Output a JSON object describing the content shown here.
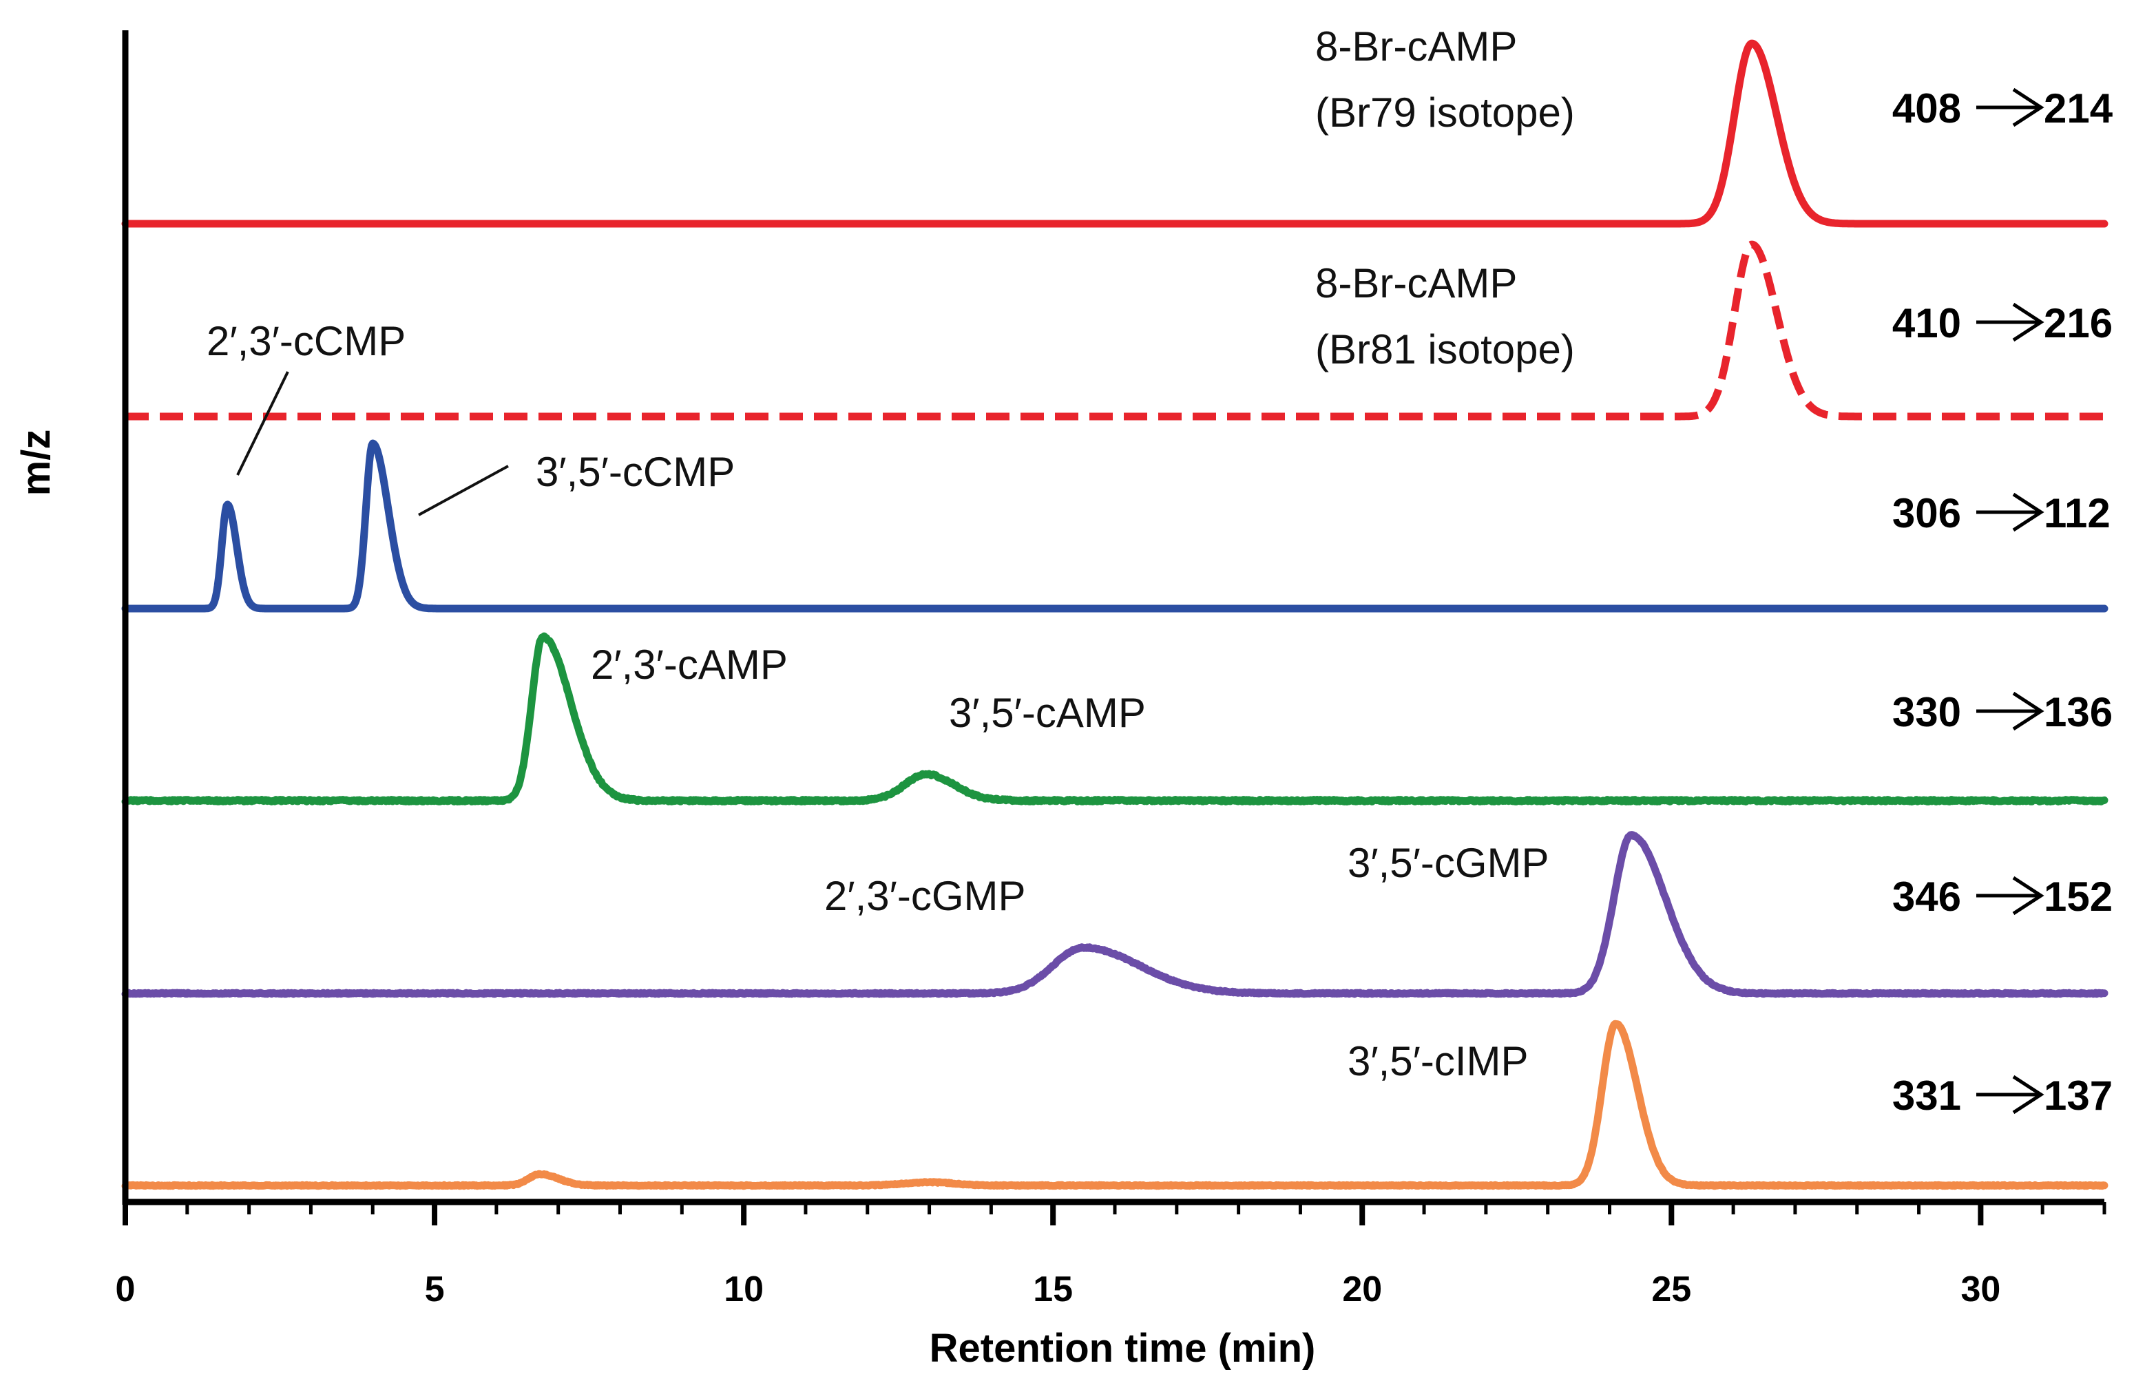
{
  "chart_data": {
    "type": "line",
    "title": "",
    "xlabel": "Retention time (min)",
    "ylabel": "m/z",
    "xlim": [
      0,
      32
    ],
    "xticks": [
      0,
      5,
      10,
      15,
      20,
      25,
      30
    ],
    "grid": false,
    "series": [
      {
        "name": "8-Br-cAMP (Br79 isotope)",
        "transition": {
          "precursor": "408",
          "product": "214"
        },
        "color": "#e8242c",
        "dashed": false,
        "noise": 0.0,
        "peaks": [
          {
            "rt": 26.3,
            "height": 1.0,
            "width": 0.28,
            "tail": 0.4
          }
        ],
        "labels": [
          {
            "lines": [
              "8-Br-cAMP",
              "(Br79 isotope)"
            ]
          }
        ]
      },
      {
        "name": "8-Br-cAMP (Br81 isotope)",
        "transition": {
          "precursor": "410",
          "product": "216"
        },
        "color": "#e8242c",
        "dashed": true,
        "noise": 0.0,
        "peaks": [
          {
            "rt": 26.3,
            "height": 1.0,
            "width": 0.28,
            "tail": 0.4
          }
        ],
        "labels": [
          {
            "lines": [
              "8-Br-cAMP",
              "(Br81 isotope)"
            ]
          }
        ]
      },
      {
        "name": "cCMP",
        "transition": {
          "precursor": "306",
          "product": "112"
        },
        "color": "#2b4ea2",
        "dashed": false,
        "noise": 0.0,
        "peaks": [
          {
            "rt": 1.65,
            "height": 0.63,
            "width": 0.09,
            "tail": 0.15
          },
          {
            "rt": 4.0,
            "height": 1.0,
            "width": 0.11,
            "tail": 0.25
          }
        ],
        "labels": [
          {
            "lines": [
              "2′,3′-cCMP"
            ]
          },
          {
            "lines": [
              "3′,5′-cCMP"
            ]
          }
        ]
      },
      {
        "name": "cAMP",
        "transition": {
          "precursor": "330",
          "product": "136"
        },
        "color": "#1d9440",
        "dashed": false,
        "noise": 0.012,
        "peaks": [
          {
            "rt": 6.75,
            "height": 1.0,
            "width": 0.18,
            "tail": 0.45
          },
          {
            "rt": 12.95,
            "height": 0.16,
            "width": 0.35,
            "tail": 0.45
          }
        ],
        "labels": [
          {
            "lines": [
              "2′,3′-cAMP"
            ]
          },
          {
            "lines": [
              "3′,5′-cAMP"
            ]
          }
        ]
      },
      {
        "name": "cGMP",
        "transition": {
          "precursor": "346",
          "product": "152"
        },
        "color": "#6b4da8",
        "dashed": false,
        "noise": 0.008,
        "peaks": [
          {
            "rt": 15.5,
            "height": 0.29,
            "width": 0.5,
            "tail": 0.9
          },
          {
            "rt": 24.35,
            "height": 1.0,
            "width": 0.28,
            "tail": 0.55
          }
        ],
        "labels": [
          {
            "lines": [
              "2′,3′-cGMP"
            ]
          },
          {
            "lines": [
              "3′,5′-cGMP"
            ]
          }
        ]
      },
      {
        "name": "cIMP",
        "transition": {
          "precursor": "331",
          "product": "137"
        },
        "color": "#f28a48",
        "dashed": false,
        "noise": 0.006,
        "peaks": [
          {
            "rt": 6.7,
            "height": 0.07,
            "width": 0.18,
            "tail": 0.3
          },
          {
            "rt": 13.0,
            "height": 0.02,
            "width": 0.4,
            "tail": 0.4
          },
          {
            "rt": 24.1,
            "height": 1.0,
            "width": 0.22,
            "tail": 0.35
          }
        ],
        "labels": [
          {
            "lines": [
              "3′,5′-cIMP"
            ]
          }
        ]
      }
    ]
  }
}
